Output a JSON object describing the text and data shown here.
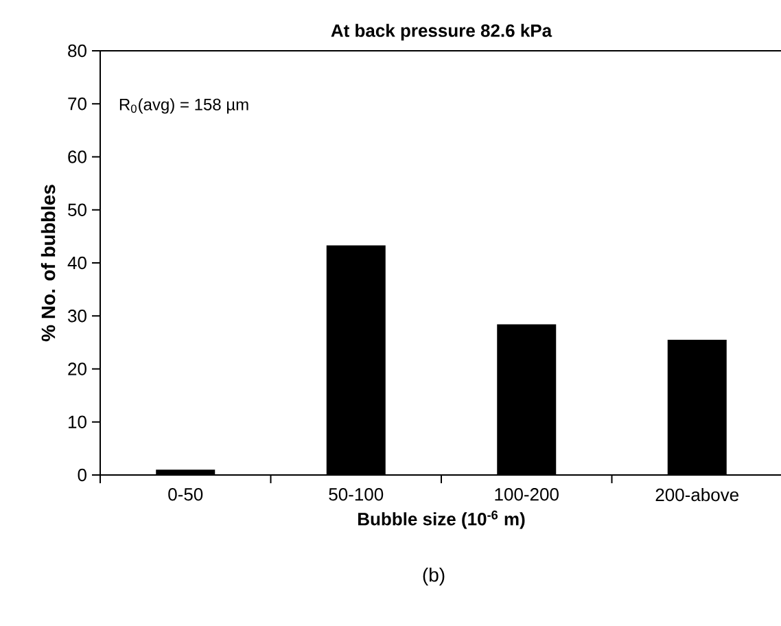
{
  "chart_data": {
    "type": "bar",
    "title": "At back pressure 82.6 kPa",
    "xlabel": "Bubble size (10$^{-6}$ m)",
    "ylabel": "% No. of bubbles",
    "categories": [
      "0-50",
      "50-100",
      "100-200",
      "200-above"
    ],
    "values": [
      1,
      43.3,
      28.4,
      25.5
    ],
    "color": "#000000",
    "ylim": [
      0,
      80
    ],
    "yticks": [
      0,
      10,
      20,
      30,
      40,
      50,
      60,
      70,
      80
    ],
    "annotations": [
      "R$_{0}$(avg) = 158 µm",
      "(b)"
    ]
  }
}
